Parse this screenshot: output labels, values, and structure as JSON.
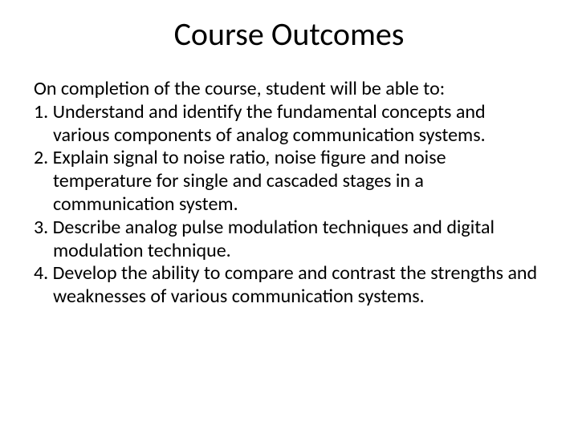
{
  "slide": {
    "title": "Course Outcomes",
    "intro": "On completion of the course, student will be able to:",
    "outcomes": [
      "1. Understand and identify the fundamental concepts and various components of analog communication systems.",
      "2. Explain signal to noise ratio, noise figure and noise temperature for single and cascaded stages in a communication system.",
      "3. Describe analog pulse modulation techniques and digital modulation technique.",
      "4. Develop the ability to compare and contrast the strengths and weaknesses of various communication systems."
    ]
  },
  "styling": {
    "background_color": "#ffffff",
    "text_color": "#000000",
    "title_fontsize": 40,
    "body_fontsize": 24,
    "title_fontweight": 400,
    "body_fontweight": 400,
    "font_family": "Calibri",
    "line_height": 1.2
  }
}
